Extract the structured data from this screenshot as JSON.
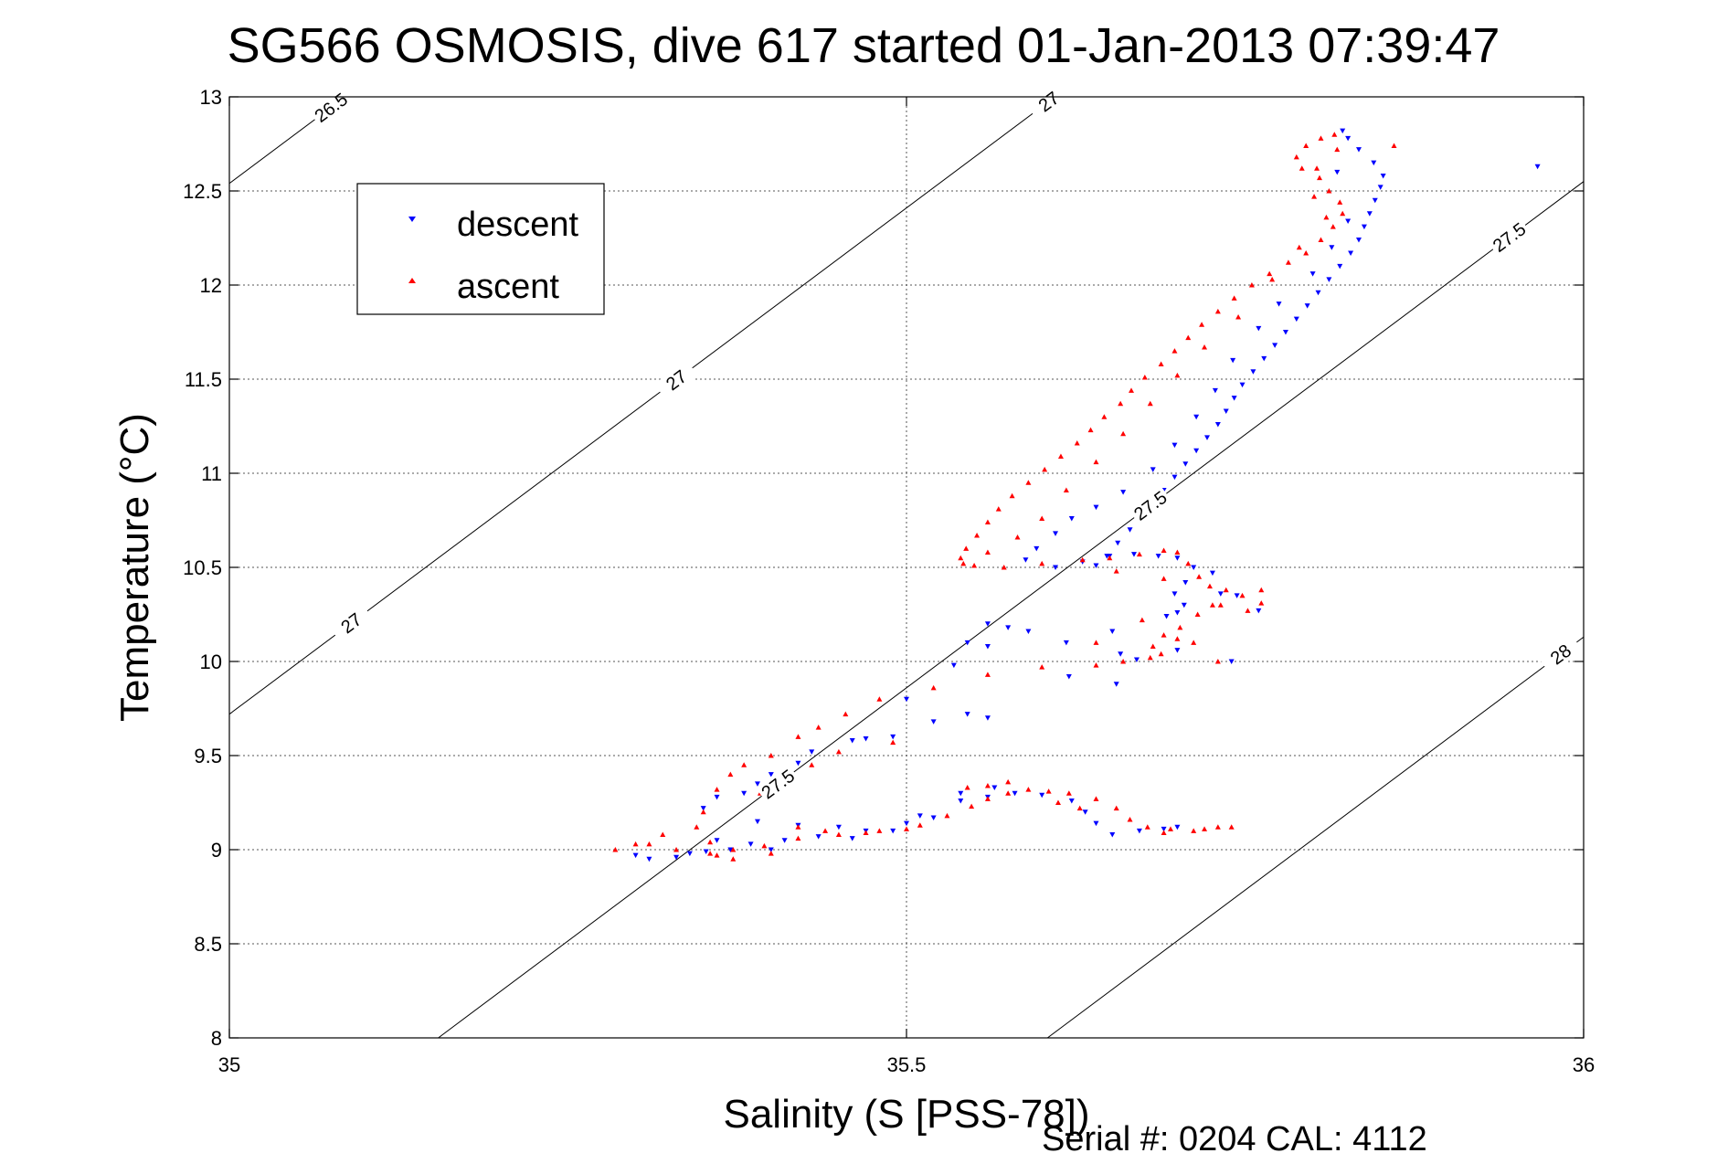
{
  "chart_data": {
    "type": "scatter",
    "title": "SG566 OSMOSIS, dive 617 started 01-Jan-2013 07:39:47",
    "xlabel": "Salinity (S [PSS-78])",
    "ylabel": "Temperature (°C)",
    "xlim": [
      35,
      36
    ],
    "ylim": [
      8,
      13
    ],
    "xticks": [
      "35",
      "35.5",
      "36"
    ],
    "yticks": [
      "8",
      "8.5",
      "9",
      "9.5",
      "10",
      "10.5",
      "11",
      "11.5",
      "12",
      "12.5",
      "13"
    ],
    "grid": true,
    "legend_position": "top-left",
    "footer": "Serial #: 0204  CAL: 4112",
    "colors": {
      "descent": "#0000ff",
      "ascent": "#ff0000",
      "contour": "#000000"
    },
    "series": [
      {
        "name": "descent",
        "marker": "triangle-down",
        "points": [
          [
            35.822,
            12.82
          ],
          [
            35.826,
            12.78
          ],
          [
            35.834,
            12.72
          ],
          [
            35.845,
            12.65
          ],
          [
            35.852,
            12.58
          ],
          [
            35.85,
            12.52
          ],
          [
            35.846,
            12.45
          ],
          [
            35.842,
            12.38
          ],
          [
            35.838,
            12.31
          ],
          [
            35.834,
            12.24
          ],
          [
            35.828,
            12.17
          ],
          [
            35.82,
            12.1
          ],
          [
            35.812,
            12.03
          ],
          [
            35.804,
            11.96
          ],
          [
            35.796,
            11.89
          ],
          [
            35.788,
            11.82
          ],
          [
            35.78,
            11.75
          ],
          [
            35.772,
            11.68
          ],
          [
            35.764,
            11.61
          ],
          [
            35.756,
            11.54
          ],
          [
            35.748,
            11.47
          ],
          [
            35.742,
            11.4
          ],
          [
            35.736,
            11.33
          ],
          [
            35.73,
            11.26
          ],
          [
            35.722,
            11.19
          ],
          [
            35.714,
            11.12
          ],
          [
            35.706,
            11.05
          ],
          [
            35.698,
            10.98
          ],
          [
            35.69,
            10.91
          ],
          [
            35.682,
            10.84
          ],
          [
            35.674,
            10.77
          ],
          [
            35.665,
            10.7
          ],
          [
            35.656,
            10.63
          ],
          [
            35.648,
            10.56
          ],
          [
            35.64,
            10.51
          ],
          [
            35.65,
            10.56
          ],
          [
            35.668,
            10.57
          ],
          [
            35.686,
            10.56
          ],
          [
            35.7,
            10.55
          ],
          [
            35.712,
            10.5
          ],
          [
            35.726,
            10.47
          ],
          [
            35.706,
            10.42
          ],
          [
            35.698,
            10.36
          ],
          [
            35.732,
            10.36
          ],
          [
            35.744,
            10.35
          ],
          [
            35.76,
            10.27
          ],
          [
            35.705,
            10.3
          ],
          [
            35.7,
            10.26
          ],
          [
            35.692,
            10.24
          ],
          [
            35.56,
            10.2
          ],
          [
            35.575,
            10.18
          ],
          [
            35.59,
            10.16
          ],
          [
            35.545,
            10.1
          ],
          [
            35.56,
            10.08
          ],
          [
            35.618,
            10.1
          ],
          [
            35.652,
            10.16
          ],
          [
            35.658,
            10.04
          ],
          [
            35.67,
            10.01
          ],
          [
            35.7,
            10.06
          ],
          [
            35.74,
            10.0
          ],
          [
            35.535,
            9.98
          ],
          [
            35.62,
            9.92
          ],
          [
            35.655,
            9.88
          ],
          [
            35.5,
            9.8
          ],
          [
            35.545,
            9.72
          ],
          [
            35.56,
            9.7
          ],
          [
            35.52,
            9.68
          ],
          [
            35.49,
            9.6
          ],
          [
            35.47,
            9.59
          ],
          [
            35.46,
            9.58
          ],
          [
            35.43,
            9.52
          ],
          [
            35.42,
            9.46
          ],
          [
            35.4,
            9.4
          ],
          [
            35.39,
            9.35
          ],
          [
            35.38,
            9.3
          ],
          [
            35.36,
            9.28
          ],
          [
            35.35,
            9.22
          ],
          [
            35.39,
            9.15
          ],
          [
            35.42,
            9.13
          ],
          [
            35.45,
            9.12
          ],
          [
            35.47,
            9.1
          ],
          [
            35.5,
            9.14
          ],
          [
            35.52,
            9.17
          ],
          [
            35.54,
            9.26
          ],
          [
            35.56,
            9.28
          ],
          [
            35.58,
            9.3
          ],
          [
            35.6,
            9.29
          ],
          [
            35.622,
            9.26
          ],
          [
            35.632,
            9.2
          ],
          [
            35.64,
            9.14
          ],
          [
            35.652,
            9.08
          ],
          [
            35.672,
            9.1
          ],
          [
            35.69,
            9.11
          ],
          [
            35.7,
            9.12
          ],
          [
            35.54,
            9.3
          ],
          [
            35.565,
            9.33
          ],
          [
            35.385,
            9.03
          ],
          [
            35.37,
            9.0
          ],
          [
            35.352,
            8.99
          ],
          [
            35.34,
            8.98
          ],
          [
            35.33,
            8.96
          ],
          [
            35.31,
            8.95
          ],
          [
            35.3,
            8.97
          ],
          [
            35.36,
            9.05
          ],
          [
            35.4,
            9.0
          ],
          [
            35.41,
            9.05
          ],
          [
            35.435,
            9.07
          ],
          [
            35.46,
            9.06
          ],
          [
            35.49,
            9.1
          ],
          [
            35.51,
            9.18
          ],
          [
            35.818,
            12.6
          ],
          [
            35.826,
            12.34
          ],
          [
            35.814,
            12.2
          ],
          [
            35.8,
            12.06
          ],
          [
            35.775,
            11.9
          ],
          [
            35.76,
            11.77
          ],
          [
            35.741,
            11.6
          ],
          [
            35.728,
            11.44
          ],
          [
            35.714,
            11.3
          ],
          [
            35.698,
            11.15
          ],
          [
            35.682,
            11.02
          ],
          [
            35.66,
            10.9
          ],
          [
            35.64,
            10.82
          ],
          [
            35.622,
            10.76
          ],
          [
            35.61,
            10.68
          ],
          [
            35.596,
            10.6
          ],
          [
            35.588,
            10.54
          ],
          [
            35.61,
            10.5
          ],
          [
            35.63,
            10.53
          ],
          [
            35.966,
            12.63
          ]
        ]
      },
      {
        "name": "ascent",
        "marker": "triangle-up",
        "points": [
          [
            35.816,
            12.8
          ],
          [
            35.806,
            12.78
          ],
          [
            35.795,
            12.74
          ],
          [
            35.788,
            12.68
          ],
          [
            35.792,
            12.62
          ],
          [
            35.805,
            12.57
          ],
          [
            35.812,
            12.5
          ],
          [
            35.82,
            12.44
          ],
          [
            35.822,
            12.38
          ],
          [
            35.815,
            12.31
          ],
          [
            35.806,
            12.24
          ],
          [
            35.795,
            12.17
          ],
          [
            35.782,
            12.12
          ],
          [
            35.768,
            12.06
          ],
          [
            35.755,
            12.0
          ],
          [
            35.742,
            11.93
          ],
          [
            35.73,
            11.86
          ],
          [
            35.718,
            11.79
          ],
          [
            35.708,
            11.72
          ],
          [
            35.698,
            11.65
          ],
          [
            35.688,
            11.58
          ],
          [
            35.676,
            11.51
          ],
          [
            35.666,
            11.44
          ],
          [
            35.658,
            11.37
          ],
          [
            35.646,
            11.3
          ],
          [
            35.636,
            11.23
          ],
          [
            35.626,
            11.16
          ],
          [
            35.614,
            11.09
          ],
          [
            35.602,
            11.02
          ],
          [
            35.59,
            10.95
          ],
          [
            35.578,
            10.88
          ],
          [
            35.568,
            10.81
          ],
          [
            35.56,
            10.74
          ],
          [
            35.552,
            10.67
          ],
          [
            35.544,
            10.6
          ],
          [
            35.54,
            10.55
          ],
          [
            35.55,
            10.51
          ],
          [
            35.572,
            10.5
          ],
          [
            35.6,
            10.52
          ],
          [
            35.63,
            10.54
          ],
          [
            35.65,
            10.55
          ],
          [
            35.672,
            10.57
          ],
          [
            35.69,
            10.59
          ],
          [
            35.7,
            10.58
          ],
          [
            35.708,
            10.52
          ],
          [
            35.716,
            10.45
          ],
          [
            35.724,
            10.4
          ],
          [
            35.736,
            10.38
          ],
          [
            35.748,
            10.35
          ],
          [
            35.762,
            10.31
          ],
          [
            35.752,
            10.27
          ],
          [
            35.732,
            10.3
          ],
          [
            35.715,
            10.25
          ],
          [
            35.702,
            10.18
          ],
          [
            35.69,
            10.14
          ],
          [
            35.682,
            10.08
          ],
          [
            35.68,
            10.02
          ],
          [
            35.688,
            10.04
          ],
          [
            35.7,
            10.12
          ],
          [
            35.712,
            10.1
          ],
          [
            35.66,
            10.0
          ],
          [
            35.64,
            9.98
          ],
          [
            35.6,
            9.97
          ],
          [
            35.56,
            9.93
          ],
          [
            35.52,
            9.86
          ],
          [
            35.48,
            9.8
          ],
          [
            35.455,
            9.72
          ],
          [
            35.435,
            9.65
          ],
          [
            35.42,
            9.6
          ],
          [
            35.4,
            9.5
          ],
          [
            35.38,
            9.45
          ],
          [
            35.37,
            9.4
          ],
          [
            35.36,
            9.32
          ],
          [
            35.35,
            9.2
          ],
          [
            35.345,
            9.12
          ],
          [
            35.32,
            9.08
          ],
          [
            35.31,
            9.03
          ],
          [
            35.33,
            9.0
          ],
          [
            35.355,
            8.98
          ],
          [
            35.372,
            9.0
          ],
          [
            35.395,
            9.02
          ],
          [
            35.42,
            9.06
          ],
          [
            35.45,
            9.08
          ],
          [
            35.48,
            9.1
          ],
          [
            35.51,
            9.13
          ],
          [
            35.53,
            9.18
          ],
          [
            35.548,
            9.23
          ],
          [
            35.56,
            9.27
          ],
          [
            35.575,
            9.3
          ],
          [
            35.59,
            9.32
          ],
          [
            35.605,
            9.31
          ],
          [
            35.62,
            9.3
          ],
          [
            35.64,
            9.27
          ],
          [
            35.655,
            9.22
          ],
          [
            35.665,
            9.16
          ],
          [
            35.678,
            9.12
          ],
          [
            35.695,
            9.11
          ],
          [
            35.712,
            9.1
          ],
          [
            35.72,
            9.11
          ],
          [
            35.74,
            9.12
          ],
          [
            35.575,
            9.36
          ],
          [
            35.56,
            9.34
          ],
          [
            35.545,
            9.33
          ],
          [
            35.3,
            9.03
          ],
          [
            35.285,
            9.0
          ],
          [
            35.36,
            8.97
          ],
          [
            35.372,
            8.95
          ],
          [
            35.4,
            8.98
          ],
          [
            35.355,
            9.04
          ],
          [
            35.818,
            12.72
          ],
          [
            35.803,
            12.62
          ],
          [
            35.801,
            12.47
          ],
          [
            35.81,
            12.36
          ],
          [
            35.79,
            12.2
          ],
          [
            35.77,
            12.03
          ],
          [
            35.745,
            11.83
          ],
          [
            35.72,
            11.67
          ],
          [
            35.7,
            11.52
          ],
          [
            35.68,
            11.37
          ],
          [
            35.66,
            11.21
          ],
          [
            35.64,
            11.06
          ],
          [
            35.618,
            10.91
          ],
          [
            35.6,
            10.76
          ],
          [
            35.582,
            10.66
          ],
          [
            35.56,
            10.58
          ],
          [
            35.542,
            10.52
          ],
          [
            35.655,
            10.48
          ],
          [
            35.69,
            10.44
          ],
          [
            35.726,
            10.3
          ],
          [
            35.762,
            10.38
          ],
          [
            35.73,
            10.0
          ],
          [
            35.674,
            10.22
          ],
          [
            35.64,
            10.1
          ],
          [
            35.49,
            9.57
          ],
          [
            35.45,
            9.52
          ],
          [
            35.43,
            9.45
          ],
          [
            35.415,
            9.38
          ],
          [
            35.392,
            9.3
          ],
          [
            35.86,
            12.74
          ],
          [
            35.42,
            9.12
          ],
          [
            35.44,
            9.1
          ],
          [
            35.47,
            9.09
          ],
          [
            35.5,
            9.11
          ],
          [
            35.612,
            9.25
          ],
          [
            35.628,
            9.22
          ],
          [
            35.69,
            9.09
          ],
          [
            35.73,
            9.12
          ]
        ]
      }
    ],
    "contours": [
      {
        "level": "26.5",
        "labels": [
          "26.5"
        ]
      },
      {
        "level": "27",
        "labels": [
          "27",
          "27",
          "27"
        ]
      },
      {
        "level": "27.5",
        "labels": [
          "27.5",
          "27.5",
          "27.5"
        ]
      },
      {
        "level": "28",
        "labels": [
          "28"
        ]
      }
    ]
  }
}
